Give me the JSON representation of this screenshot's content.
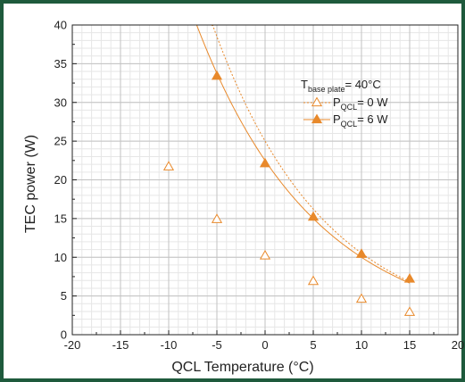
{
  "colors": {
    "frame": "#1e5a3c",
    "series": "#e8892b"
  },
  "chart_data": {
    "type": "scatter",
    "xlabel": "QCL Temperature (°C)",
    "ylabel": "TEC power (W)",
    "xlim": [
      -20,
      20
    ],
    "ylim": [
      0,
      40
    ],
    "xticks": [
      -20,
      -15,
      -10,
      -5,
      0,
      5,
      10,
      15,
      20
    ],
    "yticks": [
      0,
      5,
      10,
      15,
      20,
      25,
      30,
      35,
      40
    ],
    "grid": true,
    "legend_position": "top-right",
    "legend": {
      "title_main": "T",
      "title_sub": "base plate",
      "title_rest": "= 40°C"
    },
    "series": [
      {
        "name_main": "P",
        "name_sub": "QCL",
        "name_rest": "= 0 W",
        "marker": "open-triangle",
        "line": "dotted",
        "fit": [
          25.0,
          0.0864
        ],
        "x": [
          -10,
          -5,
          0,
          5,
          10,
          15
        ],
        "y": [
          21.7,
          14.9,
          10.2,
          6.9,
          4.6,
          2.9
        ]
      },
      {
        "name_main": "P",
        "name_sub": "QCL",
        "name_rest": "= 6 W",
        "marker": "filled-triangle",
        "line": "solid",
        "fit": [
          22.5,
          0.0811
        ],
        "x": [
          -5,
          0,
          5,
          10,
          15
        ],
        "y": [
          33.4,
          22.1,
          15.2,
          10.4,
          7.2
        ]
      }
    ]
  }
}
